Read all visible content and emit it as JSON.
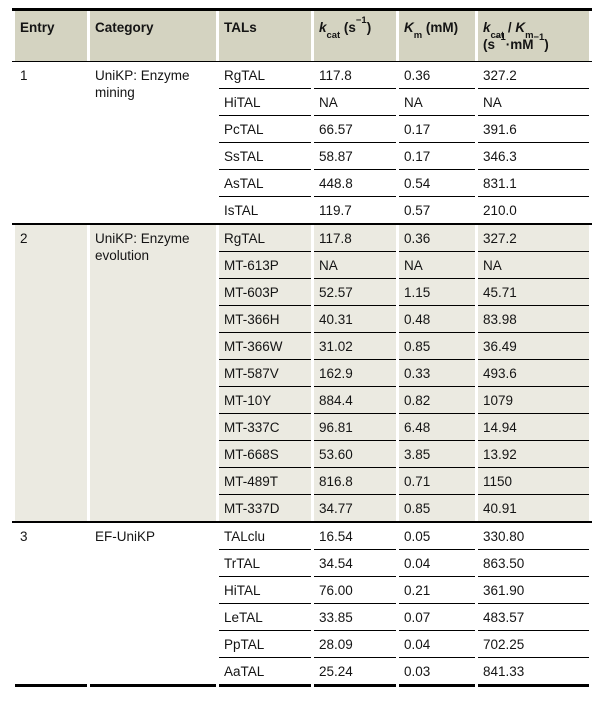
{
  "colors": {
    "header_bg": "#d4d3c1",
    "alt_bg": "#ebeae1",
    "line": "#000000",
    "text": "#141414",
    "page_bg": "#ffffff"
  },
  "headers": {
    "entry": "Entry",
    "category": "Category",
    "tals": "TALs",
    "kcat": {
      "sym": "k",
      "sub": "cat",
      "open": " (s",
      "sup": "−1",
      "close": ")"
    },
    "km": {
      "sym": "K",
      "sub": "m",
      "unit": " (mM)"
    },
    "ratio": {
      "sym1": "k",
      "sub1": "cat",
      "slash": " / ",
      "sym2": "K",
      "sub2": "m",
      "open": "(s",
      "sup1": "−1",
      "mid": "·mM",
      "sup2": "−1",
      "close": ")"
    }
  },
  "sections": [
    {
      "entry": "1",
      "category": "UniKP: Enzyme mining",
      "rows": [
        {
          "tal": "RgTAL",
          "kcat": "117.8",
          "km": "0.36",
          "ratio": "327.2"
        },
        {
          "tal": "HiTAL",
          "kcat": "NA",
          "km": "NA",
          "ratio": "NA"
        },
        {
          "tal": "PcTAL",
          "kcat": "66.57",
          "km": "0.17",
          "ratio": "391.6"
        },
        {
          "tal": "SsTAL",
          "kcat": "58.87",
          "km": "0.17",
          "ratio": "346.3"
        },
        {
          "tal": "AsTAL",
          "kcat": "448.8",
          "km": "0.54",
          "ratio": "831.1"
        },
        {
          "tal": "IsTAL",
          "kcat": "119.7",
          "km": "0.57",
          "ratio": "210.0"
        }
      ]
    },
    {
      "entry": "2",
      "category": "UniKP: Enzyme evolution",
      "rows": [
        {
          "tal": "RgTAL",
          "kcat": "117.8",
          "km": "0.36",
          "ratio": "327.2"
        },
        {
          "tal": "MT-613P",
          "kcat": "NA",
          "km": "NA",
          "ratio": "NA"
        },
        {
          "tal": "MT-603P",
          "kcat": "52.57",
          "km": "1.15",
          "ratio": "45.71"
        },
        {
          "tal": "MT-366H",
          "kcat": "40.31",
          "km": "0.48",
          "ratio": "83.98"
        },
        {
          "tal": "MT-366W",
          "kcat": "31.02",
          "km": "0.85",
          "ratio": "36.49"
        },
        {
          "tal": "MT-587V",
          "kcat": "162.9",
          "km": "0.33",
          "ratio": "493.6"
        },
        {
          "tal": "MT-10Y",
          "kcat": "884.4",
          "km": "0.82",
          "ratio": "1079"
        },
        {
          "tal": "MT-337C",
          "kcat": "96.81",
          "km": "6.48",
          "ratio": "14.94"
        },
        {
          "tal": "MT-668S",
          "kcat": "53.60",
          "km": "3.85",
          "ratio": "13.92"
        },
        {
          "tal": "MT-489T",
          "kcat": "816.8",
          "km": "0.71",
          "ratio": "1150"
        },
        {
          "tal": "MT-337D",
          "kcat": "34.77",
          "km": "0.85",
          "ratio": "40.91"
        }
      ]
    },
    {
      "entry": "3",
      "category": "EF-UniKP",
      "rows": [
        {
          "tal": "TALclu",
          "kcat": "16.54",
          "km": "0.05",
          "ratio": "330.80"
        },
        {
          "tal": "TrTAL",
          "kcat": "34.54",
          "km": "0.04",
          "ratio": "863.50"
        },
        {
          "tal": "HiTAL",
          "kcat": "76.00",
          "km": "0.21",
          "ratio": "361.90"
        },
        {
          "tal": "LeTAL",
          "kcat": "33.85",
          "km": "0.07",
          "ratio": "483.57"
        },
        {
          "tal": "PpTAL",
          "kcat": "28.09",
          "km": "0.04",
          "ratio": "702.25"
        },
        {
          "tal": "AaTAL",
          "kcat": "25.24",
          "km": "0.03",
          "ratio": "841.33"
        }
      ]
    }
  ],
  "chart_data": {
    "type": "table",
    "title": "",
    "columns": [
      "Entry",
      "Category",
      "TALs",
      "kcat (s−1)",
      "Km (mM)",
      "kcat / Km (s−1·mM−1)"
    ],
    "rows": [
      [
        "1",
        "UniKP: Enzyme mining",
        "RgTAL",
        "117.8",
        "0.36",
        "327.2"
      ],
      [
        "1",
        "UniKP: Enzyme mining",
        "HiTAL",
        "NA",
        "NA",
        "NA"
      ],
      [
        "1",
        "UniKP: Enzyme mining",
        "PcTAL",
        "66.57",
        "0.17",
        "391.6"
      ],
      [
        "1",
        "UniKP: Enzyme mining",
        "SsTAL",
        "58.87",
        "0.17",
        "346.3"
      ],
      [
        "1",
        "UniKP: Enzyme mining",
        "AsTAL",
        "448.8",
        "0.54",
        "831.1"
      ],
      [
        "1",
        "UniKP: Enzyme mining",
        "IsTAL",
        "119.7",
        "0.57",
        "210.0"
      ],
      [
        "2",
        "UniKP: Enzyme evolution",
        "RgTAL",
        "117.8",
        "0.36",
        "327.2"
      ],
      [
        "2",
        "UniKP: Enzyme evolution",
        "MT-613P",
        "NA",
        "NA",
        "NA"
      ],
      [
        "2",
        "UniKP: Enzyme evolution",
        "MT-603P",
        "52.57",
        "1.15",
        "45.71"
      ],
      [
        "2",
        "UniKP: Enzyme evolution",
        "MT-366H",
        "40.31",
        "0.48",
        "83.98"
      ],
      [
        "2",
        "UniKP: Enzyme evolution",
        "MT-366W",
        "31.02",
        "0.85",
        "36.49"
      ],
      [
        "2",
        "UniKP: Enzyme evolution",
        "MT-587V",
        "162.9",
        "0.33",
        "493.6"
      ],
      [
        "2",
        "UniKP: Enzyme evolution",
        "MT-10Y",
        "884.4",
        "0.82",
        "1079"
      ],
      [
        "2",
        "UniKP: Enzyme evolution",
        "MT-337C",
        "96.81",
        "6.48",
        "14.94"
      ],
      [
        "2",
        "UniKP: Enzyme evolution",
        "MT-668S",
        "53.60",
        "3.85",
        "13.92"
      ],
      [
        "2",
        "UniKP: Enzyme evolution",
        "MT-489T",
        "816.8",
        "0.71",
        "1150"
      ],
      [
        "2",
        "UniKP: Enzyme evolution",
        "MT-337D",
        "34.77",
        "0.85",
        "40.91"
      ],
      [
        "3",
        "EF-UniKP",
        "TALclu",
        "16.54",
        "0.05",
        "330.80"
      ],
      [
        "3",
        "EF-UniKP",
        "TrTAL",
        "34.54",
        "0.04",
        "863.50"
      ],
      [
        "3",
        "EF-UniKP",
        "HiTAL",
        "76.00",
        "0.21",
        "361.90"
      ],
      [
        "3",
        "EF-UniKP",
        "LeTAL",
        "33.85",
        "0.07",
        "483.57"
      ],
      [
        "3",
        "EF-UniKP",
        "PpTAL",
        "28.09",
        "0.04",
        "702.25"
      ],
      [
        "3",
        "EF-UniKP",
        "AaTAL",
        "25.24",
        "0.03",
        "841.33"
      ]
    ]
  }
}
